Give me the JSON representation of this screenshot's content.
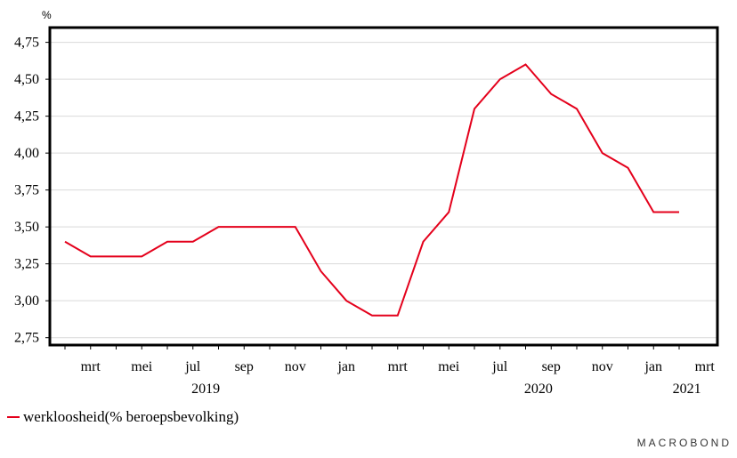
{
  "chart_data": {
    "type": "line",
    "unit": "%",
    "x": [
      "2019-02",
      "2019-03",
      "2019-04",
      "2019-05",
      "2019-06",
      "2019-07",
      "2019-08",
      "2019-09",
      "2019-10",
      "2019-11",
      "2019-12",
      "2020-01",
      "2020-02",
      "2020-03",
      "2020-04",
      "2020-05",
      "2020-06",
      "2020-07",
      "2020-08",
      "2020-09",
      "2020-10",
      "2020-11",
      "2020-12",
      "2021-01",
      "2021-02"
    ],
    "series": [
      {
        "name": "werkloosheid(% beroepsbevolking)",
        "color": "#e4001b",
        "values": [
          3.4,
          3.3,
          3.3,
          3.3,
          3.4,
          3.4,
          3.5,
          3.5,
          3.5,
          3.5,
          3.2,
          3.0,
          2.9,
          2.9,
          3.4,
          3.6,
          4.3,
          4.5,
          4.6,
          4.4,
          4.3,
          4.0,
          3.9,
          3.6,
          3.6
        ]
      }
    ],
    "ylim": [
      2.7,
      4.85
    ],
    "yticks": [
      "2,75",
      "3,00",
      "3,25",
      "3,50",
      "3,75",
      "4,00",
      "4,25",
      "4,50",
      "4,75"
    ],
    "xtick_labels": [
      "mrt",
      "mei",
      "jul",
      "sep",
      "nov",
      "jan",
      "mrt",
      "mei",
      "jul",
      "sep",
      "nov",
      "jan",
      "mrt"
    ],
    "year_labels": [
      "2019",
      "2020",
      "2021"
    ],
    "grid": true,
    "legend_position": "bottom-left"
  },
  "branding": "MACROBOND"
}
